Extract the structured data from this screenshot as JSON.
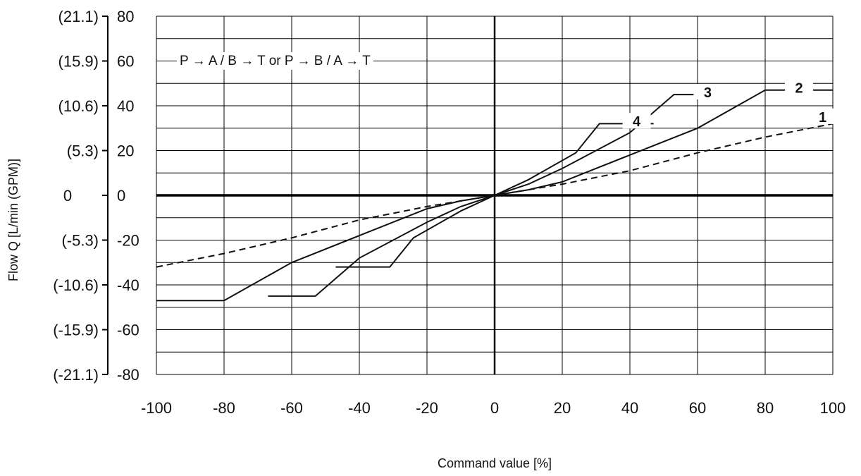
{
  "chart_data": {
    "type": "line",
    "xlabel": "Command value [%]",
    "ylabel": "Flow Q [L/min (GPM)]",
    "xlim": [
      -100,
      100
    ],
    "ylim": [
      -80,
      80
    ],
    "x_ticks": [
      "-100",
      "-80",
      "-60",
      "-40",
      "-20",
      "0",
      "20",
      "40",
      "60",
      "80",
      "100"
    ],
    "y_ticks": [
      {
        "value": 80,
        "label": "80",
        "gpm": "(21.1)"
      },
      {
        "value": 60,
        "label": "60",
        "gpm": "(15.9)"
      },
      {
        "value": 40,
        "label": "40",
        "gpm": "(10.6)"
      },
      {
        "value": 20,
        "label": "20",
        "gpm": "(5.3)"
      },
      {
        "value": 0,
        "label": "0",
        "gpm": "0"
      },
      {
        "value": -20,
        "label": "-20",
        "gpm": "(-5.3)"
      },
      {
        "value": -40,
        "label": "-40",
        "gpm": "(-10.6)"
      },
      {
        "value": -60,
        "label": "-60",
        "gpm": "(-15.9)"
      },
      {
        "value": -80,
        "label": "-80",
        "gpm": "(-21.1)"
      }
    ],
    "grid": true,
    "annotation": "P → A / B → T  or  P → B / A → T",
    "series": [
      {
        "name": "1",
        "style": "dashed",
        "x": [
          -100,
          -80,
          -60,
          -40,
          -20,
          0,
          20,
          40,
          60,
          80,
          100
        ],
        "y": [
          -32,
          -26,
          -19,
          -11,
          -5,
          0,
          5,
          11,
          19,
          26,
          32
        ]
      },
      {
        "name": "2",
        "style": "solid",
        "x": [
          -100,
          -80,
          -60,
          -40,
          -20,
          -10,
          0,
          10,
          20,
          40,
          60,
          80,
          100
        ],
        "y": [
          -47,
          -47,
          -30,
          -18,
          -6,
          -2.5,
          0,
          2.5,
          6,
          18,
          30,
          47,
          47
        ]
      },
      {
        "name": "3",
        "style": "solid",
        "x": [
          -67,
          -53,
          -40,
          -20,
          -10,
          0,
          10,
          20,
          40,
          53,
          67
        ],
        "y": [
          -45,
          -45,
          -28,
          -12,
          -5,
          0,
          5,
          12,
          28,
          45,
          45
        ]
      },
      {
        "name": "4",
        "style": "solid",
        "x": [
          -47,
          -31,
          -24,
          -10,
          0,
          10,
          24,
          31,
          47
        ],
        "y": [
          -32,
          -32,
          -19,
          -7,
          0,
          7,
          19,
          32,
          32
        ]
      }
    ],
    "series_label_anchors": [
      {
        "name": "1",
        "x": 97,
        "y": 35
      },
      {
        "name": "2",
        "x": 90,
        "y": 48
      },
      {
        "name": "3",
        "x": 63,
        "y": 46
      },
      {
        "name": "4",
        "x": 42,
        "y": 33
      }
    ]
  }
}
